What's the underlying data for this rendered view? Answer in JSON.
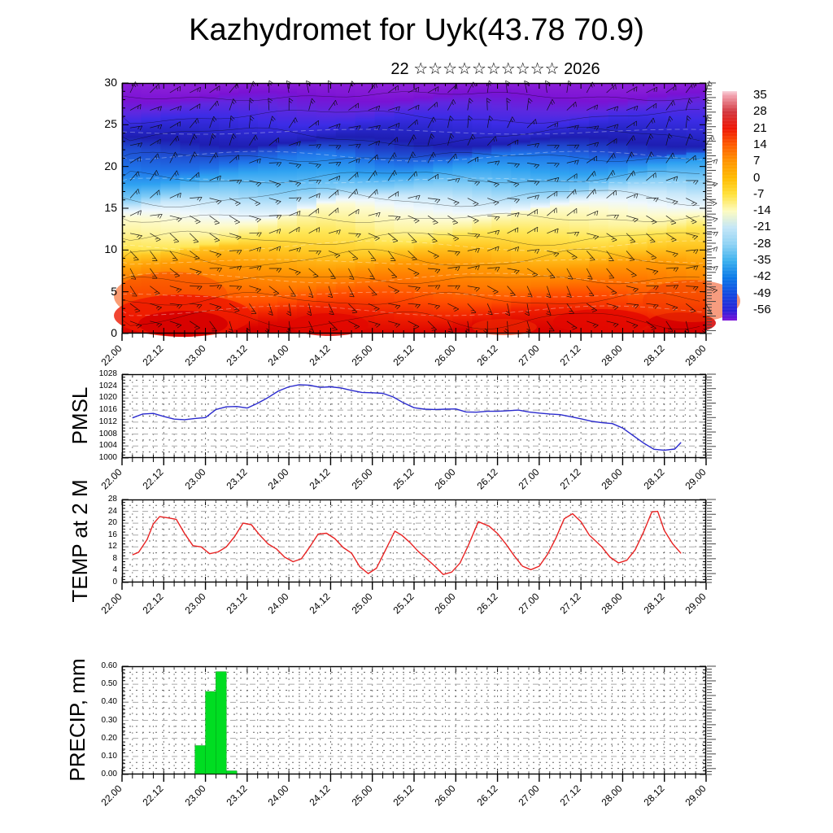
{
  "header": {
    "title": "Kazhydromet for Uyk(43.78 70.9)",
    "date_line": "22 ☆☆☆☆☆☆☆☆☆☆ 2026"
  },
  "x_axis": {
    "tick_labels": [
      "22.00",
      "22.12",
      "23.00",
      "23.12",
      "24.00",
      "24.12",
      "25.00",
      "25.12",
      "26.00",
      "26.12",
      "27.00",
      "27.12",
      "28.00",
      "28.12",
      "29.00"
    ],
    "minor_ticks_per_interval": 3,
    "time_format": "day.hour"
  },
  "chart_data": [
    {
      "id": "temperature_height_cross_section",
      "type": "heatmap",
      "description": "Temperature cross-section (height/level 0-30 vs time) with wind barbs and contour lines",
      "ylim": [
        0,
        30
      ],
      "yticks": [
        0,
        5,
        10,
        15,
        20,
        25,
        30
      ],
      "x_axis": "shared",
      "overlay": [
        "wind-barbs",
        "temperature-contours"
      ],
      "fill_bands_top_to_bottom": [
        {
          "offset": 0.0,
          "color": "#8b1fd8"
        },
        {
          "offset": 0.055,
          "color": "#7a12d4"
        },
        {
          "offset": 0.1,
          "color": "#5e28e0"
        },
        {
          "offset": 0.15,
          "color": "#3c2ce6"
        },
        {
          "offset": 0.2,
          "color": "#2726c8"
        },
        {
          "offset": 0.235,
          "color": "#1e1eb2"
        },
        {
          "offset": 0.27,
          "color": "#1f49cf"
        },
        {
          "offset": 0.31,
          "color": "#1f74e9"
        },
        {
          "offset": 0.36,
          "color": "#2fa2f1"
        },
        {
          "offset": 0.42,
          "color": "#7ccaf6"
        },
        {
          "offset": 0.47,
          "color": "#c9e8fa"
        },
        {
          "offset": 0.505,
          "color": "#eff8fd"
        },
        {
          "offset": 0.53,
          "color": "#fdfbd0"
        },
        {
          "offset": 0.57,
          "color": "#fdf49e"
        },
        {
          "offset": 0.62,
          "color": "#ffe654"
        },
        {
          "offset": 0.67,
          "color": "#ffc722"
        },
        {
          "offset": 0.73,
          "color": "#ff9d05"
        },
        {
          "offset": 0.8,
          "color": "#ff7800"
        },
        {
          "offset": 0.86,
          "color": "#ff4e00"
        },
        {
          "offset": 0.92,
          "color": "#f02100"
        },
        {
          "offset": 0.97,
          "color": "#e00a00"
        },
        {
          "offset": 1.0,
          "color": "#d60000"
        }
      ],
      "colorbar": {
        "tick_labels": [
          35,
          28,
          21,
          14,
          7,
          0,
          -7,
          -14,
          -21,
          -28,
          -35,
          -42,
          -49,
          -56
        ],
        "stops": [
          {
            "offset": 0.0,
            "color": "#f8d4dc"
          },
          {
            "offset": 0.018,
            "color": "#f2a3b0"
          },
          {
            "offset": 0.09,
            "color": "#d2373f"
          },
          {
            "offset": 0.162,
            "color": "#ee1605"
          },
          {
            "offset": 0.234,
            "color": "#fe5a00"
          },
          {
            "offset": 0.307,
            "color": "#ff9500"
          },
          {
            "offset": 0.379,
            "color": "#ffbb00"
          },
          {
            "offset": 0.451,
            "color": "#ffe13c"
          },
          {
            "offset": 0.523,
            "color": "#fdfbc0"
          },
          {
            "offset": 0.595,
            "color": "#c3e6f7"
          },
          {
            "offset": 0.668,
            "color": "#8fd2f4"
          },
          {
            "offset": 0.74,
            "color": "#3cb1ee"
          },
          {
            "offset": 0.812,
            "color": "#0b7ae8"
          },
          {
            "offset": 0.885,
            "color": "#1348e0"
          },
          {
            "offset": 0.957,
            "color": "#2b20d8"
          },
          {
            "offset": 1.0,
            "color": "#7a10d8"
          }
        ]
      }
    },
    {
      "id": "pmsl",
      "type": "line",
      "ylabel": "PMSL",
      "line_color": "#2a2ace",
      "ylim": [
        1000,
        1028
      ],
      "yticks": [
        1000,
        1004,
        1008,
        1012,
        1016,
        1020,
        1024,
        1028
      ],
      "x_axis": "shared",
      "x_unit": "days_from_22.00",
      "points": [
        [
          0.125,
          1013.4
        ],
        [
          0.25,
          1014.7
        ],
        [
          0.375,
          1014.9
        ],
        [
          0.5,
          1013.9
        ],
        [
          0.625,
          1013.0
        ],
        [
          0.75,
          1012.8
        ],
        [
          0.875,
          1013.2
        ],
        [
          1.0,
          1013.5
        ],
        [
          1.125,
          1016.2
        ],
        [
          1.25,
          1017.1
        ],
        [
          1.375,
          1017.2
        ],
        [
          1.5,
          1016.7
        ],
        [
          1.625,
          1018.3
        ],
        [
          1.75,
          1020.2
        ],
        [
          1.875,
          1022.4
        ],
        [
          2.0,
          1023.8
        ],
        [
          2.125,
          1024.5
        ],
        [
          2.25,
          1024.3
        ],
        [
          2.375,
          1023.6
        ],
        [
          2.5,
          1023.8
        ],
        [
          2.625,
          1023.4
        ],
        [
          2.75,
          1022.6
        ],
        [
          2.875,
          1021.9
        ],
        [
          3.0,
          1021.8
        ],
        [
          3.125,
          1021.6
        ],
        [
          3.25,
          1020.4
        ],
        [
          3.375,
          1018.4
        ],
        [
          3.5,
          1016.8
        ],
        [
          3.625,
          1016.3
        ],
        [
          3.75,
          1016.2
        ],
        [
          3.875,
          1016.3
        ],
        [
          4.0,
          1016.4
        ],
        [
          4.125,
          1015.4
        ],
        [
          4.25,
          1015.3
        ],
        [
          4.375,
          1015.6
        ],
        [
          4.5,
          1015.6
        ],
        [
          4.625,
          1015.8
        ],
        [
          4.75,
          1016.0
        ],
        [
          4.875,
          1015.4
        ],
        [
          5.0,
          1015.0
        ],
        [
          5.125,
          1014.7
        ],
        [
          5.25,
          1014.5
        ],
        [
          5.375,
          1013.8
        ],
        [
          5.5,
          1013.1
        ],
        [
          5.625,
          1012.3
        ],
        [
          5.75,
          1011.8
        ],
        [
          5.875,
          1011.5
        ],
        [
          6.0,
          1010.0
        ],
        [
          6.125,
          1007.5
        ],
        [
          6.25,
          1005.0
        ],
        [
          6.375,
          1002.9
        ],
        [
          6.5,
          1002.6
        ],
        [
          6.625,
          1003.0
        ],
        [
          6.7,
          1005.2
        ]
      ]
    },
    {
      "id": "temp_2m",
      "type": "line",
      "ylabel": "TEMP at 2 M",
      "line_color": "#e82222",
      "ylim": [
        0,
        28
      ],
      "yticks": [
        0,
        4,
        8,
        12,
        16,
        20,
        24,
        28
      ],
      "x_axis": "shared",
      "x_unit": "days_from_22.00",
      "points": [
        [
          0.125,
          9.3
        ],
        [
          0.2,
          10.2
        ],
        [
          0.3,
          14.5
        ],
        [
          0.375,
          19.8
        ],
        [
          0.45,
          22.2
        ],
        [
          0.55,
          21.8
        ],
        [
          0.65,
          21.3
        ],
        [
          0.75,
          16.5
        ],
        [
          0.85,
          12.4
        ],
        [
          0.95,
          12.0
        ],
        [
          1.05,
          9.7
        ],
        [
          1.15,
          10.3
        ],
        [
          1.25,
          12.0
        ],
        [
          1.35,
          15.5
        ],
        [
          1.45,
          20.0
        ],
        [
          1.55,
          19.5
        ],
        [
          1.65,
          16.0
        ],
        [
          1.75,
          13.0
        ],
        [
          1.85,
          11.3
        ],
        [
          1.95,
          8.5
        ],
        [
          2.05,
          7.0
        ],
        [
          2.15,
          8.0
        ],
        [
          2.25,
          12.0
        ],
        [
          2.35,
          16.3
        ],
        [
          2.45,
          16.6
        ],
        [
          2.55,
          14.8
        ],
        [
          2.65,
          11.8
        ],
        [
          2.75,
          9.9
        ],
        [
          2.85,
          5.3
        ],
        [
          2.95,
          3.0
        ],
        [
          3.05,
          4.8
        ],
        [
          3.15,
          10.5
        ],
        [
          3.27,
          17.3
        ],
        [
          3.35,
          16.0
        ],
        [
          3.45,
          13.5
        ],
        [
          3.55,
          10.5
        ],
        [
          3.65,
          8.0
        ],
        [
          3.75,
          5.5
        ],
        [
          3.85,
          2.7
        ],
        [
          3.95,
          3.5
        ],
        [
          4.05,
          6.5
        ],
        [
          4.15,
          12.5
        ],
        [
          4.27,
          20.5
        ],
        [
          4.4,
          19.0
        ],
        [
          4.5,
          16.5
        ],
        [
          4.6,
          13.0
        ],
        [
          4.7,
          9.0
        ],
        [
          4.8,
          5.5
        ],
        [
          4.9,
          4.3
        ],
        [
          5.0,
          5.5
        ],
        [
          5.1,
          9.5
        ],
        [
          5.2,
          15.0
        ],
        [
          5.3,
          21.5
        ],
        [
          5.4,
          23.2
        ],
        [
          5.5,
          20.5
        ],
        [
          5.6,
          16.0
        ],
        [
          5.75,
          12.0
        ],
        [
          5.85,
          8.5
        ],
        [
          5.95,
          6.6
        ],
        [
          6.05,
          7.5
        ],
        [
          6.15,
          11.0
        ],
        [
          6.25,
          17.0
        ],
        [
          6.35,
          23.8
        ],
        [
          6.42,
          24.0
        ],
        [
          6.5,
          17.5
        ],
        [
          6.6,
          13.0
        ],
        [
          6.7,
          9.8
        ]
      ]
    },
    {
      "id": "precip",
      "type": "bar",
      "ylabel": "PRECIP, mm",
      "bar_color": "#00dd22",
      "ylim": [
        0,
        0.6
      ],
      "yticks": [
        "0.00",
        "0.10",
        "0.20",
        "0.30",
        "0.40",
        "0.50",
        "0.60"
      ],
      "x_axis": "shared",
      "x_unit": "days_from_22.00",
      "bar_width_days": 0.125,
      "bars": [
        [
          0.875,
          0.16
        ],
        [
          1.0,
          0.46
        ],
        [
          1.125,
          0.57
        ],
        [
          1.25,
          0.02
        ]
      ]
    }
  ]
}
